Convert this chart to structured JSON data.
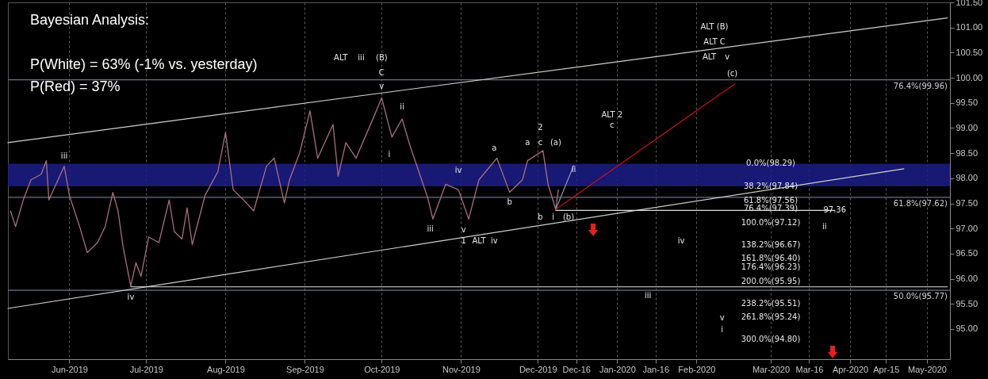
{
  "chart_data": {
    "type": "line",
    "title": "Bayesian Analysis:",
    "annotations": [
      "P(White) = 63%  (-1% vs. yesterday)",
      "P(Red) = 37%",
      "iii",
      "iv",
      "ALT",
      "iii",
      "(B)",
      "C",
      "v",
      "ii",
      "i",
      "iii",
      "iv",
      "v",
      "1",
      "ALT",
      "iv",
      "a",
      "b",
      "2",
      "a",
      "c",
      "(a)",
      "b",
      "i",
      "(b)",
      "ii",
      "ALT 2",
      "c",
      "ALT (B)",
      "ALT C",
      "ALT",
      "v",
      "(c)",
      "iv",
      "iii",
      "ii",
      "v",
      "i",
      "97.36",
      "0.0%(98.29)",
      "38.2%(97.84)",
      "61.8%(97.56)",
      "76.4%(97.39)",
      "100.0%(97.12)",
      "138.2%(96.67)",
      "161.8%(96.40)",
      "176.4%(96.23)",
      "200.0%(95.95)",
      "238.2%(95.51)",
      "261.8%(95.24)",
      "300.0%(94.80)"
    ],
    "x": [
      "2019-05-09",
      "2019-05-11",
      "2019-05-14",
      "2019-05-17",
      "2019-05-21",
      "2019-05-23",
      "2019-05-24",
      "2019-05-30",
      "2019-06-01",
      "2019-06-05",
      "2019-06-08",
      "2019-06-12",
      "2019-06-15",
      "2019-06-18",
      "2019-06-20",
      "2019-06-22",
      "2019-06-25",
      "2019-06-27",
      "2019-06-29",
      "2019-07-02",
      "2019-07-06",
      "2019-07-10",
      "2019-07-12",
      "2019-07-15",
      "2019-07-17",
      "2019-07-19",
      "2019-07-24",
      "2019-07-29",
      "2019-08-01",
      "2019-08-04",
      "2019-08-08",
      "2019-08-12",
      "2019-08-17",
      "2019-08-20",
      "2019-08-24",
      "2019-08-26",
      "2019-08-30",
      "2019-09-03",
      "2019-09-06",
      "2019-09-12",
      "2019-09-14",
      "2019-09-17",
      "2019-09-21",
      "2019-09-28",
      "2019-10-01",
      "2019-10-05",
      "2019-10-09",
      "2019-10-12",
      "2019-10-19",
      "2019-10-21",
      "2019-10-26",
      "2019-10-31",
      "2019-11-04",
      "2019-11-08",
      "2019-11-15",
      "2019-11-20",
      "2019-11-25",
      "2019-11-27",
      "2019-12-03",
      "2019-12-05",
      "2019-12-08",
      "2019-12-09"
    ],
    "series": [
      {
        "color": "#a8707e",
        "values": [
          97.35,
          97.04,
          97.57,
          97.97,
          98.08,
          98.35,
          97.57,
          98.24,
          97.66,
          97.04,
          96.52,
          96.72,
          97.04,
          97.72,
          97.35,
          96.63,
          95.85,
          96.32,
          96.05,
          96.83,
          96.72,
          97.57,
          96.94,
          96.79,
          97.41,
          96.68,
          97.66,
          98.13,
          98.91,
          97.77,
          97.57,
          97.35,
          98.24,
          98.4,
          97.51,
          97.97,
          98.51,
          99.34,
          98.4,
          99.07,
          98.04,
          98.71,
          98.4,
          99.23,
          99.6,
          98.82,
          99.18,
          98.66,
          97.61,
          97.19,
          97.88,
          97.77,
          97.19,
          97.97,
          98.4,
          97.72,
          97.97,
          98.35,
          98.55,
          97.88,
          97.38,
          97.77
        ]
      },
      {
        "type": "line",
        "color": "#d0d0d0",
        "x": [
          "2019-05-08",
          "2020-05-09"
        ],
        "values": [
          98.71,
          101.19
        ]
      },
      {
        "type": "line",
        "color": "#d0d0d0",
        "x": [
          "2019-05-08",
          "2020-04-22"
        ],
        "values": [
          95.41,
          98.19
        ]
      },
      {
        "type": "line",
        "color": "#e0e0e0",
        "x": [
          "2019-06-25",
          "2020-05-09"
        ],
        "values": [
          95.84,
          95.84
        ]
      },
      {
        "type": "line",
        "color": "#e0e0e0",
        "x": [
          "2019-12-08",
          "2020-03-26"
        ],
        "values": [
          97.36,
          97.36
        ]
      },
      {
        "type": "line",
        "color": "#8a9ab0",
        "x": [
          "2019-12-08",
          "2019-12-15"
        ],
        "values": [
          97.38,
          98.25
        ]
      },
      {
        "type": "line",
        "color": "#cc1111",
        "x": [
          "2019-12-08",
          "2020-02-16"
        ],
        "values": [
          97.38,
          99.88
        ]
      }
    ],
    "ref_lines": [
      {
        "axis": "y",
        "value": 99.96,
        "label": "76.4%(99.96)",
        "color": "#6a7585"
      },
      {
        "axis": "y",
        "value": 97.62,
        "label": "61.8%(97.62)",
        "color": "#6a7585"
      },
      {
        "axis": "y",
        "value": 95.77,
        "label": "50.0%(95.77)",
        "color": "#6a7585"
      }
    ],
    "bands": [
      {
        "axis": "y",
        "from": 97.84,
        "to": 98.29,
        "color": "#1c1c8a"
      }
    ],
    "xlim": [
      "2019-05-08",
      "2020-05-10"
    ],
    "xticks": [
      {
        "value": "2019-06-01",
        "label": "Jun-2019"
      },
      {
        "value": "2019-07-01",
        "label": "Jul-2019"
      },
      {
        "value": "2019-08-01",
        "label": "Aug-2019"
      },
      {
        "value": "2019-09-01",
        "label": "Sep-2019"
      },
      {
        "value": "2019-10-01",
        "label": "Oct-2019"
      },
      {
        "value": "2019-11-01",
        "label": "Nov-2019"
      },
      {
        "value": "2019-12-01",
        "label": "Dec-2019"
      },
      {
        "value": "2019-12-16",
        "label": "Dec-16"
      },
      {
        "value": "2020-01-01",
        "label": "Jan-2020"
      },
      {
        "value": "2020-01-16",
        "label": "Jan-16"
      },
      {
        "value": "2020-02-01",
        "label": "Feb-2020"
      },
      {
        "value": "2020-03-01",
        "label": "Mar-2020"
      },
      {
        "value": "2020-03-16",
        "label": "Mar-16"
      },
      {
        "value": "2020-04-01",
        "label": "Apr-2020"
      },
      {
        "value": "2020-04-15",
        "label": "Apr-15"
      },
      {
        "value": "2020-05-01",
        "label": "May-2020"
      }
    ],
    "ylim": [
      94.4,
      101.5
    ],
    "yticks": [
      {
        "value": 95,
        "label": "95.00"
      },
      {
        "value": 95.5,
        "label": "95.50"
      },
      {
        "value": 96,
        "label": "96.00"
      },
      {
        "value": 96.5,
        "label": "96.50"
      },
      {
        "value": 97,
        "label": "97.00"
      },
      {
        "value": 97.5,
        "label": "97.50"
      },
      {
        "value": 98,
        "label": "98.00"
      },
      {
        "value": 98.5,
        "label": "98.50"
      },
      {
        "value": 99,
        "label": "99.00"
      },
      {
        "value": 99.5,
        "label": "99.50"
      },
      {
        "value": 100,
        "label": "100.00"
      },
      {
        "value": 100.5,
        "label": "100.50"
      },
      {
        "value": 101,
        "label": "101.00"
      },
      {
        "value": 101.5,
        "label": "101.50"
      }
    ],
    "grid": "x",
    "line_style": "solid"
  }
}
